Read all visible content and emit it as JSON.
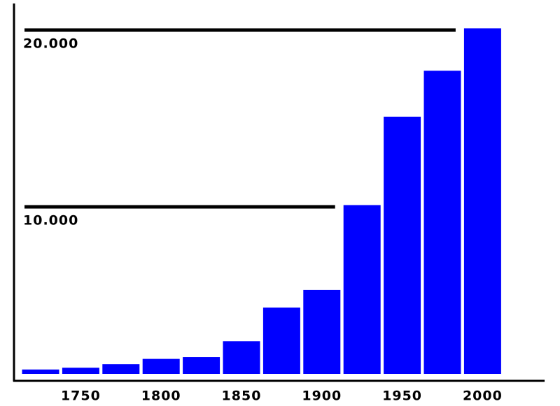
{
  "chart_data": {
    "type": "bar",
    "categories": [
      null,
      "1750",
      null,
      "1800",
      null,
      "1850",
      null,
      "1900",
      null,
      "1950",
      null,
      "2000"
    ],
    "values": [
      800,
      900,
      1100,
      1400,
      1500,
      2400,
      4300,
      5300,
      10100,
      15100,
      17700,
      20100
    ],
    "color": "#0000ff",
    "ylim": [
      0,
      21000
    ],
    "yticks": [
      {
        "value": 10000,
        "label": "10.000"
      },
      {
        "value": 20000,
        "label": "20.000"
      }
    ],
    "grid": true
  }
}
